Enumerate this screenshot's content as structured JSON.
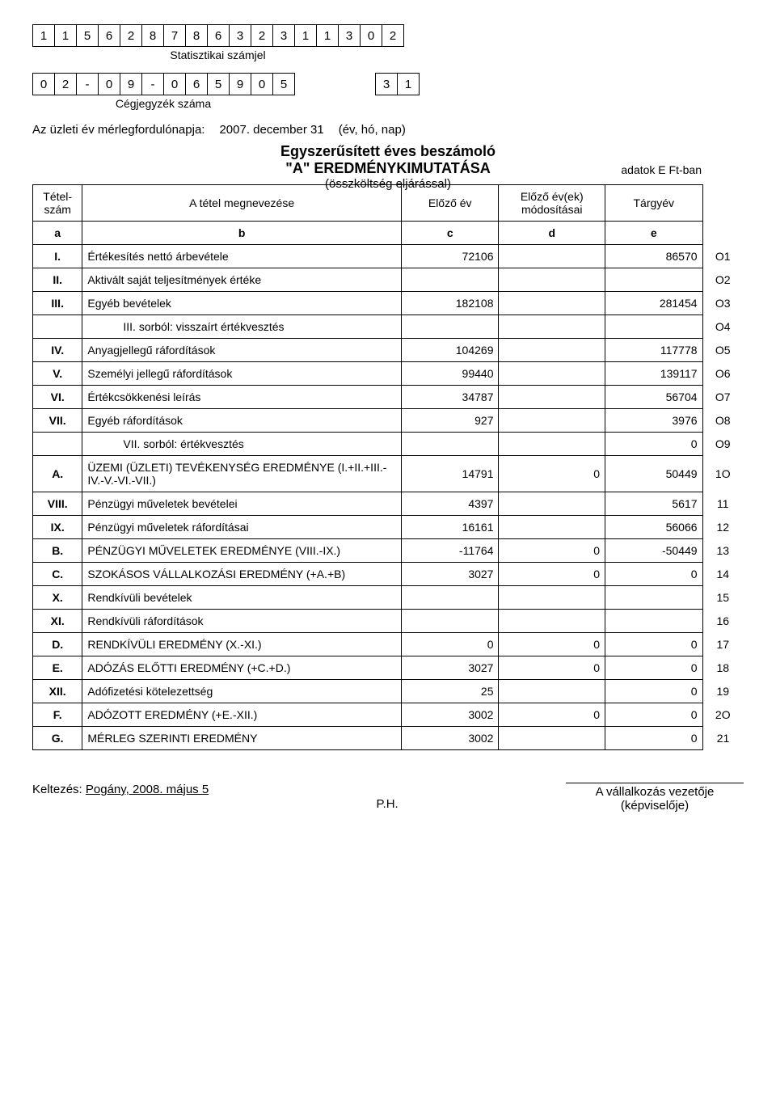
{
  "stat_code": [
    "1",
    "1",
    "5",
    "6",
    "2",
    "8",
    "7",
    "8",
    "6",
    "3",
    "2",
    "3",
    "1",
    "1",
    "3",
    "0",
    "2"
  ],
  "stat_label": "Statisztikai számjel",
  "ceg_code": [
    "0",
    "2",
    "-",
    "0",
    "9",
    "-",
    "0",
    "6",
    "5",
    "9",
    "0",
    "5"
  ],
  "ceg_extra": [
    "3",
    "1"
  ],
  "ceg_label": "Cégjegyzék száma",
  "merlegfordulo_label": "Az üzleti év mérlegfordulónapja:",
  "merlegfordulo_date": "2007. december 31",
  "merlegfordulo_note": "(év, hó, nap)",
  "title1": "Egyszerűsített éves beszámoló",
  "title2": "\"A\" EREDMÉNYKIMUTATÁSA",
  "title3": "(összköltség eljárással)",
  "unit_note": "adatok E Ft-ban",
  "header": {
    "a": "Tétel-\nszám",
    "b": "A tétel megnevezése",
    "c": "Előző év",
    "d": "Előző év(ek) módosításai",
    "e": "Tárgyév"
  },
  "head2": {
    "a": "a",
    "b": "b",
    "c": "c",
    "d": "d",
    "e": "e"
  },
  "rows": [
    {
      "a": "I.",
      "b": "Értékesítés nettó árbevétele",
      "c": "72106",
      "d": "",
      "e": "86570",
      "code": "O1"
    },
    {
      "a": "II.",
      "b": "Aktivált saját teljesítmények értéke",
      "c": "",
      "d": "",
      "e": "",
      "code": "O2"
    },
    {
      "a": "III.",
      "b": "Egyéb bevételek",
      "c": "182108",
      "d": "",
      "e": "281454",
      "code": "O3"
    },
    {
      "a": "",
      "b": "III. sorból: visszaírt értékvesztés",
      "indent": true,
      "c": "",
      "d": "",
      "e": "",
      "code": "O4"
    },
    {
      "a": "IV.",
      "b": "Anyagjellegű ráfordítások",
      "c": "104269",
      "d": "",
      "e": "117778",
      "code": "O5"
    },
    {
      "a": "V.",
      "b": "Személyi jellegű ráfordítások",
      "c": "99440",
      "d": "",
      "e": "139117",
      "code": "O6"
    },
    {
      "a": "VI.",
      "b": "Értékcsökkenési leírás",
      "c": "34787",
      "d": "",
      "e": "56704",
      "code": "O7"
    },
    {
      "a": "VII.",
      "b": "Egyéb ráfordítások",
      "c": "927",
      "d": "",
      "e": "3976",
      "code": "O8"
    },
    {
      "a": "",
      "b": "VII. sorból: értékvesztés",
      "indent": true,
      "c": "",
      "d": "",
      "e": "0",
      "code": "O9"
    },
    {
      "a": "A.",
      "b": "ÜZEMI (ÜZLETI) TEVÉKENYSÉG EREDMÉNYE (I.+II.+III.-IV.-V.-VI.-VII.)",
      "c": "14791",
      "d": "0",
      "e": "50449",
      "code": "1O"
    },
    {
      "a": "VIII.",
      "b": "Pénzügyi műveletek bevételei",
      "c": "4397",
      "d": "",
      "e": "5617",
      "code": "11"
    },
    {
      "a": "IX.",
      "b": "Pénzügyi műveletek ráfordításai",
      "c": "16161",
      "d": "",
      "e": "56066",
      "code": "12"
    },
    {
      "a": "B.",
      "b": "PÉNZÜGYI MŰVELETEK EREDMÉNYE (VIII.-IX.)",
      "c": "-11764",
      "d": "0",
      "e": "-50449",
      "code": "13"
    },
    {
      "a": "C.",
      "b": "SZOKÁSOS VÁLLALKOZÁSI EREDMÉNY (+A.+B)",
      "c": "3027",
      "d": "0",
      "e": "0",
      "code": "14"
    },
    {
      "a": "X.",
      "b": "Rendkívüli bevételek",
      "c": "",
      "d": "",
      "e": "",
      "code": "15"
    },
    {
      "a": "XI.",
      "b": "Rendkívüli ráfordítások",
      "c": "",
      "d": "",
      "e": "",
      "code": "16"
    },
    {
      "a": "D.",
      "b": "RENDKÍVÜLI EREDMÉNY (X.-XI.)",
      "c": "0",
      "d": "0",
      "e": "0",
      "code": "17"
    },
    {
      "a": "E.",
      "b": "ADÓZÁS ELŐTTI EREDMÉNY (+C.+D.)",
      "c": "3027",
      "d": "0",
      "e": "0",
      "code": "18"
    },
    {
      "a": "XII.",
      "b": "Adófizetési kötelezettség",
      "c": "25",
      "d": "",
      "e": "0",
      "code": "19"
    },
    {
      "a": "F.",
      "b": "ADÓZOTT EREDMÉNY (+E.-XII.)",
      "c": "3002",
      "d": "0",
      "e": "0",
      "code": "2O"
    },
    {
      "a": "G.",
      "b": "MÉRLEG SZERINTI EREDMÉNY",
      "c": "3002",
      "d": "",
      "e": "0",
      "code": "21"
    }
  ],
  "footer": {
    "keltezes_label": "Keltezés:",
    "keltezes_value": "Pogány, 2008. május 5",
    "ph": "P.H.",
    "sig1": "A vállalkozás vezetője",
    "sig2": "(képviselője)"
  }
}
